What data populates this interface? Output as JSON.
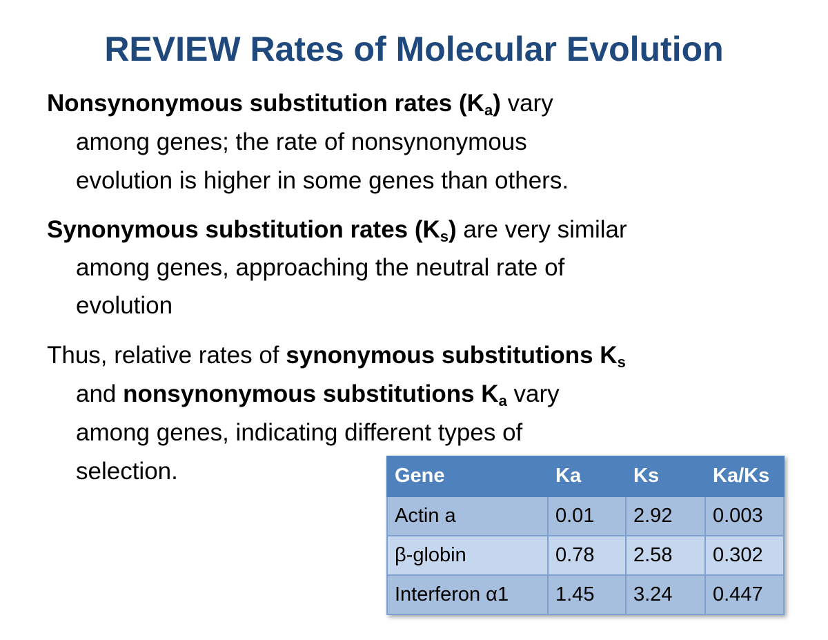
{
  "title": "REVIEW Rates of Molecular Evolution",
  "paragraphs": [
    {
      "lines": [
        [
          {
            "text": "Nonsynonymous substitution rates (K",
            "b": true
          },
          {
            "text": "a",
            "b": true,
            "sub": true
          },
          {
            "text": ")",
            "b": true
          },
          {
            "text": " vary"
          }
        ],
        [
          {
            "text": "among genes; the rate of nonsynonymous"
          }
        ],
        [
          {
            "text": "evolution is higher in some genes than others."
          }
        ]
      ]
    },
    {
      "lines": [
        [
          {
            "text": "Synonymous substitution rates (K",
            "b": true
          },
          {
            "text": "s",
            "b": true,
            "sub": true
          },
          {
            "text": ")",
            "b": true
          },
          {
            "text": " are very similar"
          }
        ],
        [
          {
            "text": "among genes, approaching the neutral rate of"
          }
        ],
        [
          {
            "text": "evolution"
          }
        ]
      ]
    },
    {
      "lines": [
        [
          {
            "text": "Thus, relative rates of "
          },
          {
            "text": "synonymous substitutions K",
            "b": true
          },
          {
            "text": "s",
            "b": true,
            "sub": true
          }
        ],
        [
          {
            "text": "and "
          },
          {
            "text": "nonsynonymous substitutions K",
            "b": true
          },
          {
            "text": "a",
            "b": true,
            "sub": true
          },
          {
            "text": " vary"
          }
        ],
        [
          {
            "text": "among genes, indicating different types of"
          }
        ],
        [
          {
            "text": "selection."
          }
        ]
      ]
    }
  ],
  "table": {
    "header": [
      "Gene",
      "Ka",
      "Ks",
      "Ka/Ks"
    ],
    "rows": [
      [
        "Actin a",
        0.01,
        2.92,
        0.003
      ],
      [
        "β-globin",
        0.78,
        2.58,
        0.302
      ],
      [
        "Interferon α1",
        1.45,
        3.24,
        0.447
      ]
    ]
  }
}
